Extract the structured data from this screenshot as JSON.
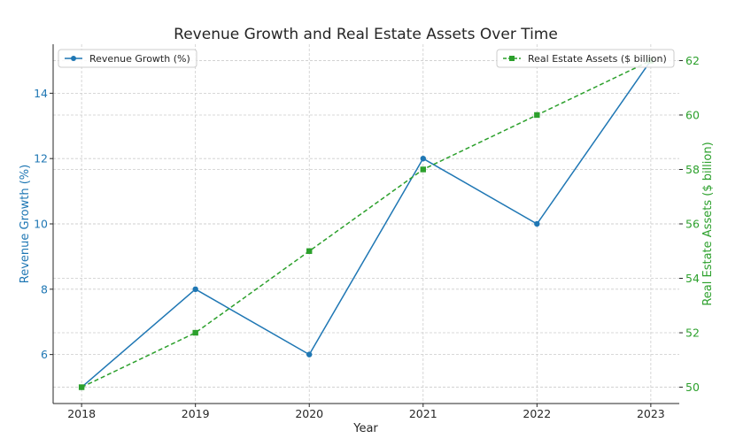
{
  "chart_data": {
    "type": "line",
    "title": "Revenue Growth and Real Estate Assets Over Time",
    "xlabel": "Year",
    "x": [
      2018,
      2019,
      2020,
      2021,
      2022,
      2023
    ],
    "x_tick_labels": [
      "2018",
      "2019",
      "2020",
      "2021",
      "2022",
      "2023"
    ],
    "grid": true,
    "axes": {
      "left": {
        "label": "Revenue Growth (%)",
        "color": "#1f77b4",
        "ylim": [
          4.5,
          15.5
        ],
        "ticks": [
          6,
          8,
          10,
          12,
          14
        ],
        "tick_labels": [
          "6",
          "8",
          "10",
          "12",
          "14"
        ]
      },
      "right": {
        "label": "Real Estate Assets ($ billion)",
        "color": "#2ca02c",
        "ylim": [
          49.4,
          62.6
        ],
        "ticks": [
          50,
          52,
          54,
          56,
          58,
          60,
          62
        ],
        "tick_labels": [
          "50",
          "52",
          "54",
          "56",
          "58",
          "60",
          "62"
        ]
      }
    },
    "series": [
      {
        "name": "Revenue Growth (%)",
        "axis": "left",
        "color": "#1f77b4",
        "line_style": "solid",
        "marker": "circle",
        "values": [
          5,
          8,
          6,
          12,
          10,
          15
        ],
        "legend_position": "upper-left"
      },
      {
        "name": "Real Estate Assets ($ billion)",
        "axis": "right",
        "color": "#2ca02c",
        "line_style": "dashed",
        "marker": "square",
        "values": [
          50,
          52,
          55,
          58,
          60,
          62
        ],
        "legend_position": "upper-right"
      }
    ]
  }
}
